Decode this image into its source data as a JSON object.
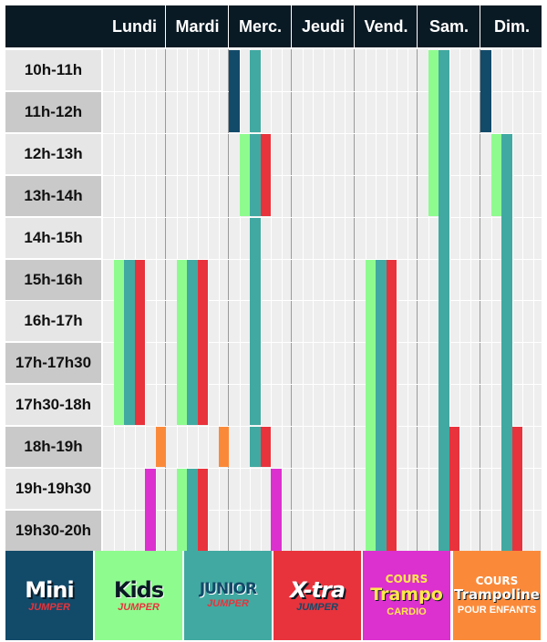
{
  "days": [
    "Lundi",
    "Mardi",
    "Merc.",
    "Jeudi",
    "Vend.",
    "Sam.",
    "Dim."
  ],
  "times": [
    "10h-11h",
    "11h-12h",
    "12h-13h",
    "13h-14h",
    "14h-15h",
    "15h-16h",
    "16h-17h",
    "17h-17h30",
    "17h30-18h",
    "18h-19h",
    "19h-19h30",
    "19h30-20h"
  ],
  "categories": [
    {
      "key": "mini",
      "color": "#124a6a",
      "line1": "Mini",
      "line2": "JUMPER",
      "textColor": "#ffffff",
      "subColor": "#e8333c"
    },
    {
      "key": "kids",
      "color": "#8efb8f",
      "line1": "Kids",
      "line2": "JUMPER",
      "textColor": "#0a1a24",
      "subColor": "#e8333c"
    },
    {
      "key": "junior",
      "color": "#41a9a1",
      "line1": "JUNIOR",
      "line2": "JUMPER",
      "textColor": "#124a6a",
      "subColor": "#e8333c"
    },
    {
      "key": "xtra",
      "color": "#e8333c",
      "line1": "X-tra",
      "line2": "JUMPER",
      "textColor": "#ffffff",
      "subColor": "#124a6a"
    },
    {
      "key": "cardio",
      "color": "#dc30cf",
      "line1": "COURS",
      "line2": "Trampo",
      "line3": "CARDIO",
      "textColor": "#ffe94a",
      "subColor": "#ffe94a"
    },
    {
      "key": "enfants",
      "color": "#fa8a3a",
      "line1": "COURS",
      "line2": "Trampoline",
      "line3": "POUR ENFANTS",
      "textColor": "#ffffff",
      "subColor": "#ffffff"
    }
  ],
  "sessions": [
    {
      "day": "Lundi",
      "category": "kids",
      "start": "15h-16h",
      "end": "17h30-18h"
    },
    {
      "day": "Lundi",
      "category": "junior",
      "start": "15h-16h",
      "end": "17h30-18h"
    },
    {
      "day": "Lundi",
      "category": "xtra",
      "start": "15h-16h",
      "end": "17h30-18h"
    },
    {
      "day": "Lundi",
      "category": "enfants",
      "start": "18h-19h",
      "end": "18h-19h"
    },
    {
      "day": "Lundi",
      "category": "cardio",
      "start": "19h-19h30",
      "end": "19h30-20h"
    },
    {
      "day": "Mardi",
      "category": "kids",
      "start": "15h-16h",
      "end": "17h30-18h"
    },
    {
      "day": "Mardi",
      "category": "junior",
      "start": "15h-16h",
      "end": "17h30-18h"
    },
    {
      "day": "Mardi",
      "category": "xtra",
      "start": "15h-16h",
      "end": "17h30-18h"
    },
    {
      "day": "Mardi",
      "category": "enfants",
      "start": "18h-19h",
      "end": "18h-19h"
    },
    {
      "day": "Mardi",
      "category": "kids",
      "start": "19h-19h30",
      "end": "19h30-20h"
    },
    {
      "day": "Mardi",
      "category": "junior",
      "start": "19h-19h30",
      "end": "19h30-20h"
    },
    {
      "day": "Mardi",
      "category": "xtra",
      "start": "19h-19h30",
      "end": "19h30-20h"
    },
    {
      "day": "Merc.",
      "category": "mini",
      "start": "10h-11h",
      "end": "11h-12h"
    },
    {
      "day": "Merc.",
      "category": "junior",
      "start": "10h-11h",
      "end": "11h-12h"
    },
    {
      "day": "Merc.",
      "category": "kids",
      "start": "12h-13h",
      "end": "13h-14h"
    },
    {
      "day": "Merc.",
      "category": "junior",
      "start": "12h-13h",
      "end": "13h-14h"
    },
    {
      "day": "Merc.",
      "category": "xtra",
      "start": "12h-13h",
      "end": "13h-14h"
    },
    {
      "day": "Merc.",
      "category": "junior",
      "start": "14h-15h",
      "end": "17h30-18h"
    },
    {
      "day": "Merc.",
      "category": "junior",
      "start": "18h-19h",
      "end": "18h-19h"
    },
    {
      "day": "Merc.",
      "category": "xtra",
      "start": "18h-19h",
      "end": "18h-19h"
    },
    {
      "day": "Merc.",
      "category": "cardio",
      "start": "19h-19h30",
      "end": "19h30-20h"
    },
    {
      "day": "Vend.",
      "category": "kids",
      "start": "15h-16h",
      "end": "19h30-20h"
    },
    {
      "day": "Vend.",
      "category": "junior",
      "start": "15h-16h",
      "end": "19h30-20h"
    },
    {
      "day": "Vend.",
      "category": "xtra",
      "start": "15h-16h",
      "end": "19h30-20h"
    },
    {
      "day": "Sam.",
      "category": "kids",
      "start": "10h-11h",
      "end": "13h-14h"
    },
    {
      "day": "Sam.",
      "category": "junior",
      "start": "10h-11h",
      "end": "19h30-20h"
    },
    {
      "day": "Sam.",
      "category": "xtra",
      "start": "18h-19h",
      "end": "19h30-20h"
    },
    {
      "day": "Dim.",
      "category": "mini",
      "start": "10h-11h",
      "end": "11h-12h"
    },
    {
      "day": "Dim.",
      "category": "kids",
      "start": "12h-13h",
      "end": "13h-14h"
    },
    {
      "day": "Dim.",
      "category": "junior",
      "start": "12h-13h",
      "end": "19h30-20h"
    },
    {
      "day": "Dim.",
      "category": "xtra",
      "start": "18h-19h",
      "end": "19h30-20h"
    }
  ]
}
